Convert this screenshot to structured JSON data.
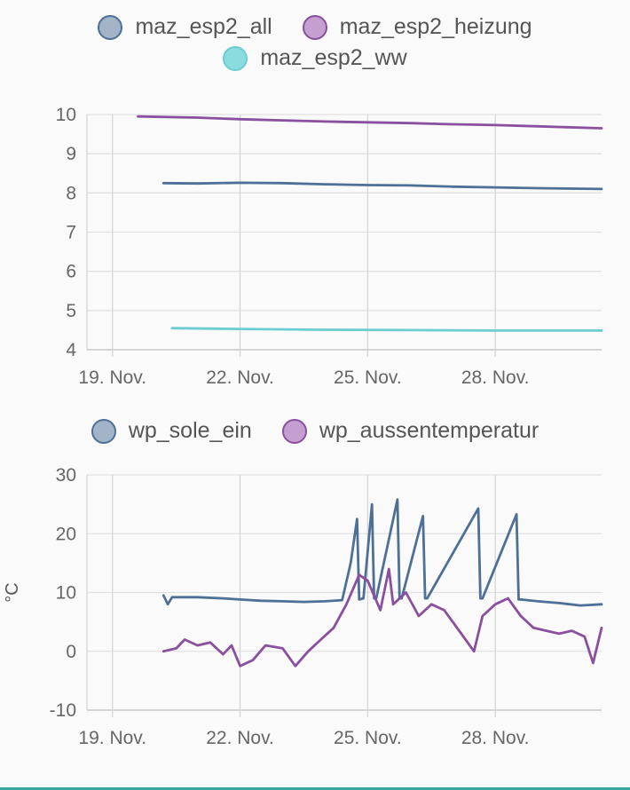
{
  "chart_data": [
    {
      "type": "line",
      "title": "",
      "xlabel": "",
      "ylabel": "",
      "x_tick_labels": [
        "19. Nov.",
        "22. Nov.",
        "25. Nov.",
        "28. Nov."
      ],
      "x_tick_days": [
        19,
        22,
        25,
        28
      ],
      "xlim": [
        18.4,
        30.5
      ],
      "ylim": [
        4,
        10
      ],
      "y_ticks": [
        4,
        5,
        6,
        7,
        8,
        9,
        10
      ],
      "grid": true,
      "legend": "top",
      "series": [
        {
          "name": "maz_esp2_all",
          "color": "#4e6f96",
          "fill": "#a3b4c9",
          "x": [
            20.2,
            21,
            22,
            23,
            24,
            25,
            26,
            27,
            28,
            29,
            30.5
          ],
          "y": [
            8.25,
            8.24,
            8.26,
            8.25,
            8.22,
            8.2,
            8.19,
            8.16,
            8.14,
            8.12,
            8.1
          ]
        },
        {
          "name": "maz_esp2_heizung",
          "color": "#8a4f9e",
          "fill": "#c49fd0",
          "x": [
            19.6,
            21,
            22,
            23,
            24,
            25,
            26,
            27,
            28,
            29,
            30.5
          ],
          "y": [
            9.95,
            9.92,
            9.88,
            9.85,
            9.82,
            9.8,
            9.78,
            9.75,
            9.73,
            9.7,
            9.65
          ]
        },
        {
          "name": "maz_esp2_ww",
          "color": "#6bcdd2",
          "fill": "#8adcdf",
          "x": [
            20.4,
            22,
            24,
            26,
            28,
            30.5
          ],
          "y": [
            4.55,
            4.53,
            4.51,
            4.5,
            4.49,
            4.49
          ]
        }
      ]
    },
    {
      "type": "line",
      "title": "",
      "xlabel": "",
      "ylabel": "°C",
      "x_tick_labels": [
        "19. Nov.",
        "22. Nov.",
        "25. Nov.",
        "28. Nov."
      ],
      "x_tick_days": [
        19,
        22,
        25,
        28
      ],
      "xlim": [
        18.4,
        30.5
      ],
      "ylim": [
        -10,
        30
      ],
      "y_ticks": [
        -10,
        0,
        10,
        20,
        30
      ],
      "grid": true,
      "legend": "top",
      "series": [
        {
          "name": "wp_sole_ein",
          "color": "#4e6f96",
          "fill": "#a3b4c9",
          "x": [
            20.2,
            20.3,
            20.4,
            21,
            21.6,
            22,
            22.5,
            23,
            23.5,
            24,
            24.4,
            24.6,
            24.75,
            24.8,
            24.9,
            25.1,
            25.15,
            25.2,
            25.7,
            25.75,
            25.8,
            26.3,
            26.35,
            26.4,
            27.6,
            27.65,
            27.7,
            28.5,
            28.55,
            28.6,
            29,
            29.5,
            30,
            30.5
          ],
          "y": [
            9.5,
            8,
            9.2,
            9.2,
            9.0,
            8.8,
            8.6,
            8.5,
            8.4,
            8.5,
            8.7,
            15,
            22.5,
            8.8,
            9.0,
            25,
            9.0,
            9.0,
            25.8,
            9.0,
            9.0,
            23,
            9.0,
            9.0,
            24.3,
            9.0,
            9.0,
            23.3,
            8.8,
            8.8,
            8.5,
            8.2,
            7.8,
            8.0
          ]
        },
        {
          "name": "wp_aussentemperatur",
          "color": "#8a4f9e",
          "fill": "#c49fd0",
          "x": [
            20.2,
            20.5,
            20.7,
            21,
            21.3,
            21.6,
            21.8,
            22,
            22.3,
            22.6,
            23,
            23.3,
            23.6,
            23.9,
            24.2,
            24.5,
            24.8,
            25.0,
            25.3,
            25.5,
            25.6,
            25.9,
            26.2,
            26.5,
            26.8,
            27.0,
            27.3,
            27.5,
            27.7,
            28.0,
            28.3,
            28.6,
            28.9,
            29.2,
            29.5,
            29.8,
            30.1,
            30.3,
            30.5
          ],
          "y": [
            0,
            0.5,
            2,
            1,
            1.5,
            -0.5,
            1,
            -2.5,
            -1.5,
            1,
            0.5,
            -2.5,
            0,
            2,
            4,
            8,
            13,
            12,
            7,
            14,
            8,
            10,
            6,
            8,
            7,
            5,
            2,
            0,
            6,
            8,
            9,
            6,
            4,
            3.5,
            3,
            3.5,
            2.5,
            -2,
            4
          ]
        }
      ]
    }
  ]
}
